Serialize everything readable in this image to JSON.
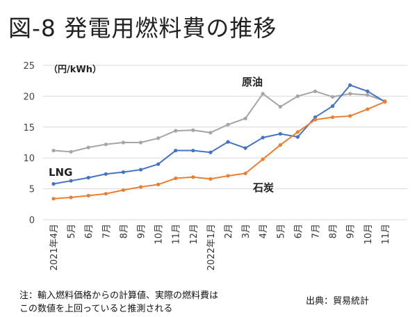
{
  "title": "図-8 発電用燃料費の推移",
  "chart_data": {
    "type": "line",
    "title": "図-8 発電用燃料費の推移",
    "ylabel": "（円/kWh）",
    "ylim": [
      0,
      25
    ],
    "yticks": [
      0,
      5,
      10,
      15,
      20,
      25
    ],
    "categories": [
      "2021年4月",
      "5月",
      "6月",
      "7月",
      "8月",
      "9月",
      "10月",
      "11月",
      "12月",
      "2022年1月",
      "2月",
      "3月",
      "4月",
      "5月",
      "6月",
      "7月",
      "8月",
      "9月",
      "10月",
      "11月"
    ],
    "series": [
      {
        "name": "原油",
        "color": "#a5a5a5",
        "values": [
          11.2,
          11.0,
          11.7,
          12.2,
          12.5,
          12.5,
          13.2,
          14.4,
          14.5,
          14.1,
          15.4,
          16.4,
          20.4,
          18.3,
          20.0,
          20.8,
          19.9,
          20.4,
          20.2,
          19.2
        ]
      },
      {
        "name": "LNG",
        "color": "#4472c4",
        "values": [
          5.8,
          6.3,
          6.8,
          7.4,
          7.7,
          8.1,
          9.0,
          11.2,
          11.2,
          10.9,
          12.6,
          11.6,
          13.3,
          13.9,
          13.4,
          16.6,
          18.4,
          21.8,
          20.8,
          19.1
        ]
      },
      {
        "name": "石炭",
        "color": "#ed7d31",
        "values": [
          3.4,
          3.6,
          3.9,
          4.2,
          4.8,
          5.3,
          5.7,
          6.7,
          6.9,
          6.6,
          7.1,
          7.5,
          9.8,
          12.1,
          14.2,
          16.2,
          16.6,
          16.8,
          17.9,
          19.1
        ]
      }
    ],
    "grid": true
  },
  "notes": {
    "left_line1": "注：輸入燃料価格からの計算値、実際の燃料費は",
    "left_line2": "この数値を上回っていると推測される",
    "source": "出典：貿易統計"
  }
}
